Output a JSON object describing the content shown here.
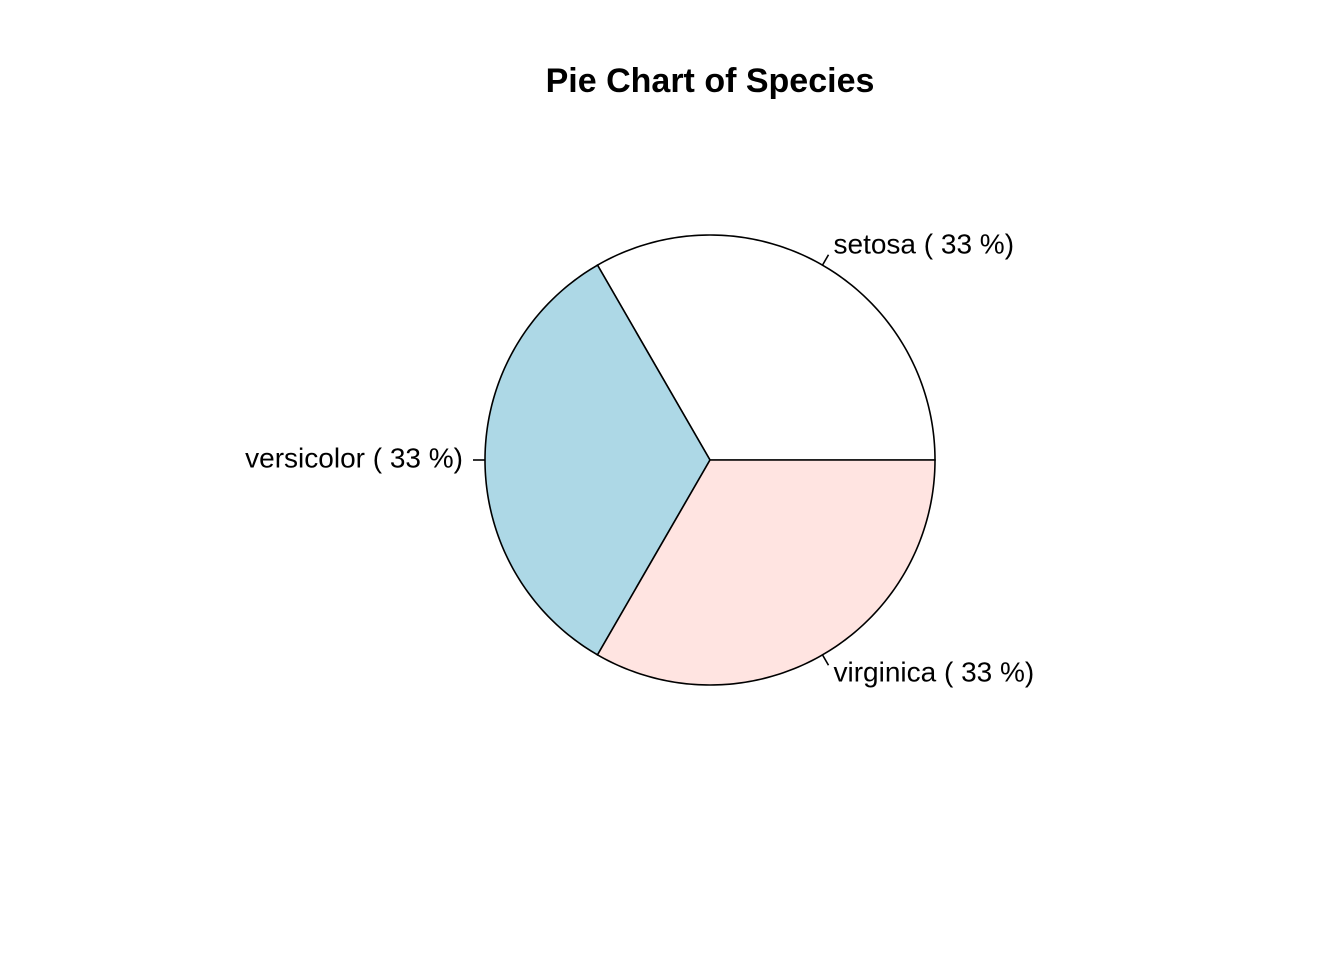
{
  "chart_data": {
    "type": "pie",
    "title": "Pie Chart of Species",
    "categories": [
      "setosa",
      "versicolor",
      "virginica"
    ],
    "values": [
      33.3333,
      33.3333,
      33.3333
    ],
    "labels": [
      "setosa ( 33 %)",
      "versicolor ( 33 %)",
      "virginica ( 33 %)"
    ],
    "colors": [
      "#ffffff",
      "#add8e6",
      "#ffe4e1"
    ],
    "start_angle_deg": 0,
    "direction": "counterclockwise",
    "border_color": "#000000"
  }
}
